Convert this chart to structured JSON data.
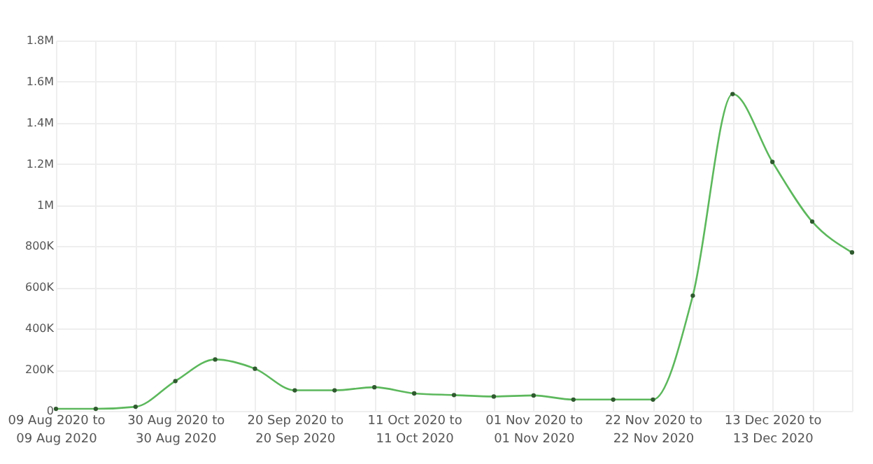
{
  "chart_data": {
    "type": "line",
    "categories": [
      "09 Aug 2020 to 09 Aug 2020",
      null,
      null,
      "30 Aug 2020 to 30 Aug 2020",
      null,
      null,
      "20 Sep 2020 to 20 Sep 2020",
      null,
      null,
      "11 Oct 2020 to 11 Oct 2020",
      null,
      null,
      "01 Nov 2020 to 01 Nov 2020",
      null,
      null,
      "22 Nov 2020 to 22 Nov 2020",
      null,
      null,
      "13 Dec 2020 to 13 Dec 2020",
      null,
      null
    ],
    "series": [
      {
        "color": "#5cb85c",
        "values": [
          10000,
          10000,
          20000,
          145000,
          250000,
          205000,
          100000,
          100000,
          115000,
          85000,
          77000,
          70000,
          75000,
          55000,
          55000,
          55000,
          560000,
          1540000,
          1210000,
          920000,
          770000
        ]
      }
    ],
    "ylim": [
      0,
      1800000
    ],
    "yticks": [
      {
        "value": 0,
        "label": "0"
      },
      {
        "value": 200000,
        "label": "200K"
      },
      {
        "value": 400000,
        "label": "400K"
      },
      {
        "value": 600000,
        "label": "600K"
      },
      {
        "value": 800000,
        "label": "800K"
      },
      {
        "value": 1000000,
        "label": "1M"
      },
      {
        "value": 1200000,
        "label": "1.2M"
      },
      {
        "value": 1400000,
        "label": "1.4M"
      },
      {
        "value": 1600000,
        "label": "1.6M"
      },
      {
        "value": 1800000,
        "label": "1.8M"
      }
    ],
    "grid": true,
    "marker": "circle",
    "line_style": "solid"
  }
}
